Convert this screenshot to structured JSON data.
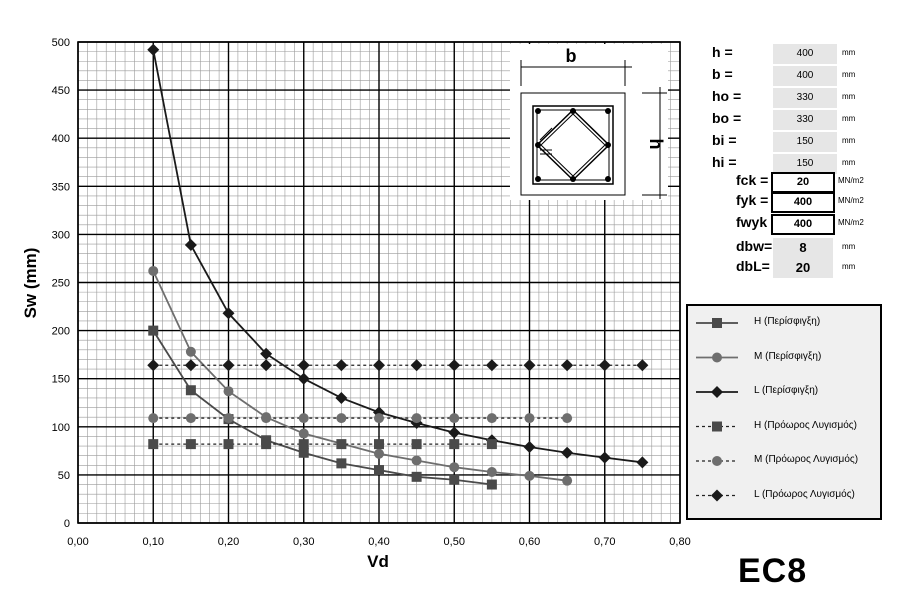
{
  "chart_data": {
    "type": "line",
    "xlabel": "Vd",
    "ylabel": "Sw (mm)",
    "xlim": [
      0,
      0.8
    ],
    "ylim": [
      0,
      500
    ],
    "x_ticks": [
      "0,00",
      "0,10",
      "0,20",
      "0,30",
      "0,40",
      "0,50",
      "0,60",
      "0,70",
      "0,80"
    ],
    "y_ticks": [
      "0",
      "50",
      "100",
      "150",
      "200",
      "250",
      "300",
      "350",
      "400",
      "450",
      "500"
    ],
    "grid": true,
    "series": [
      {
        "name": "H (Περίσφιγξη)",
        "marker": "square",
        "line": "solid",
        "color": "#4a4a4a",
        "x": [
          0.1,
          0.15,
          0.2,
          0.25,
          0.3,
          0.35,
          0.4,
          0.45,
          0.5,
          0.55
        ],
        "y": [
          200,
          138,
          108,
          86,
          73,
          62,
          55,
          48,
          45,
          40
        ]
      },
      {
        "name": "M (Περίσφιγξη)",
        "marker": "circle",
        "line": "solid",
        "color": "#6e6e6e",
        "x": [
          0.1,
          0.15,
          0.2,
          0.25,
          0.3,
          0.4,
          0.45,
          0.5,
          0.55,
          0.6,
          0.65
        ],
        "y": [
          262,
          178,
          137,
          110,
          93,
          72,
          65,
          58,
          53,
          49,
          44
        ]
      },
      {
        "name": "L (Περίσφιγξη)",
        "marker": "diamond",
        "line": "solid",
        "color": "#1a1a1a",
        "x": [
          0.1,
          0.15,
          0.2,
          0.25,
          0.3,
          0.35,
          0.4,
          0.45,
          0.5,
          0.55,
          0.6,
          0.65,
          0.7,
          0.75
        ],
        "y": [
          492,
          289,
          218,
          176,
          150,
          130,
          115,
          104,
          94,
          86,
          79,
          73,
          68,
          63
        ]
      },
      {
        "name": "H (Πρόωρος Λυγισμός)",
        "marker": "square",
        "line": "dashed",
        "color": "#4a4a4a",
        "x": [
          0.1,
          0.15,
          0.2,
          0.25,
          0.3,
          0.35,
          0.4,
          0.45,
          0.5,
          0.55
        ],
        "y": [
          82,
          82,
          82,
          82,
          82,
          82,
          82,
          82,
          82,
          82
        ]
      },
      {
        "name": "M (Πρόωρος Λυγισμός)",
        "marker": "circle",
        "line": "dashed",
        "color": "#6e6e6e",
        "x": [
          0.1,
          0.15,
          0.2,
          0.25,
          0.3,
          0.35,
          0.4,
          0.45,
          0.5,
          0.55,
          0.6,
          0.65
        ],
        "y": [
          109,
          109,
          109,
          109,
          109,
          109,
          109,
          109,
          109,
          109,
          109,
          109
        ]
      },
      {
        "name": "L (Πρόωρος Λυγισμός)",
        "marker": "diamond",
        "line": "dashed",
        "color": "#1a1a1a",
        "x": [
          0.1,
          0.15,
          0.2,
          0.25,
          0.3,
          0.35,
          0.4,
          0.45,
          0.5,
          0.55,
          0.6,
          0.65,
          0.7,
          0.75
        ],
        "y": [
          164,
          164,
          164,
          164,
          164,
          164,
          164,
          164,
          164,
          164,
          164,
          164,
          164,
          164
        ]
      }
    ],
    "legend_position": "right"
  },
  "section": {
    "width_label": "b",
    "height_label": "h"
  },
  "params": [
    {
      "label": "h =",
      "value": "400",
      "unit": "mm",
      "boxed": false
    },
    {
      "label": "b =",
      "value": "400",
      "unit": "mm",
      "boxed": false
    },
    {
      "label": "ho =",
      "value": "330",
      "unit": "mm",
      "boxed": false
    },
    {
      "label": "bo =",
      "value": "330",
      "unit": "mm",
      "boxed": false
    },
    {
      "label": "bi =",
      "value": "150",
      "unit": "mm",
      "boxed": false
    },
    {
      "label": "hi =",
      "value": "150",
      "unit": "mm",
      "boxed": false
    },
    {
      "label": "fck =",
      "value": "20",
      "unit": "MN/m2",
      "boxed": true
    },
    {
      "label": "fyk =",
      "value": "400",
      "unit": "MN/m2",
      "boxed": true
    },
    {
      "label": "fwyk =",
      "value": "400",
      "unit": "MN/m2",
      "boxed": true
    },
    {
      "label": "dbw=",
      "value": "8",
      "unit": "mm",
      "boxed": false
    },
    {
      "label": "dbL=",
      "value": "20",
      "unit": "mm",
      "boxed": false
    }
  ],
  "legend_items": [
    {
      "label": "H  (Περίσφιγξη)"
    },
    {
      "label": "M  (Περίσφιγξη)"
    },
    {
      "label": "L  (Περίσφιγξη)"
    },
    {
      "label": "H  (Πρόωρος Λυγισμός)"
    },
    {
      "label": "M  (Πρόωρος Λυγισμός)"
    },
    {
      "label": "L  (Πρόωρος Λυγισμός)"
    }
  ],
  "brand": "EC8"
}
